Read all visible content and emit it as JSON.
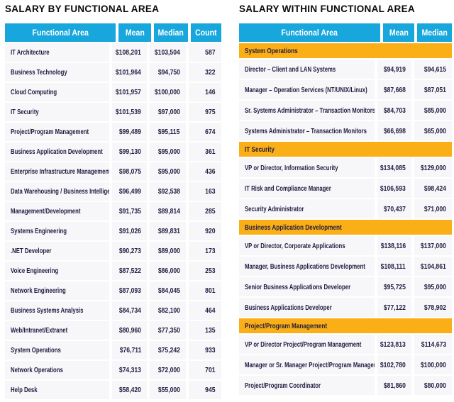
{
  "colors": {
    "header_bg": "#17A7DC",
    "section_bg": "#FBAF17",
    "row_bg": "#F7F7FA",
    "row_alt_bg": "#E5E4EF",
    "text": "#211D40",
    "header_text": "#FFFFFF"
  },
  "chart_data": [
    {
      "type": "table",
      "title": "SALARY BY FUNCTIONAL AREA",
      "columns": [
        "Functional Area",
        "Mean",
        "Median",
        "Count"
      ],
      "rows": [
        [
          "IT Architecture",
          "$108,201",
          "$103,504",
          "587"
        ],
        [
          "Business Technology",
          "$101,964",
          "$94,750",
          "322"
        ],
        [
          "Cloud Computing",
          "$101,957",
          "$100,000",
          "146"
        ],
        [
          "IT Security",
          "$101,539",
          "$97,000",
          "975"
        ],
        [
          "Project/Program Management",
          "$99,489",
          "$95,115",
          "674"
        ],
        [
          "Business Application Development",
          "$99,130",
          "$95,000",
          "361"
        ],
        [
          "Enterprise Infrastructure Management",
          "$98,075",
          "$95,000",
          "436"
        ],
        [
          "Data Warehousing / Business Intelligence",
          "$96,499",
          "$92,538",
          "163"
        ],
        [
          "Management/Development",
          "$91,735",
          "$89,814",
          "285"
        ],
        [
          "Systems Engineering",
          "$91,026",
          "$89,831",
          "920"
        ],
        [
          ".NET Developer",
          "$90,273",
          "$89,000",
          "173"
        ],
        [
          "Voice Engineering",
          "$87,522",
          "$86,000",
          "253"
        ],
        [
          "Network Engineering",
          "$87,093",
          "$84,045",
          "801"
        ],
        [
          "Business Systems Analysis",
          "$84,734",
          "$82,100",
          "464"
        ],
        [
          "Web/Intranet/Extranet",
          "$80,960",
          "$77,350",
          "135"
        ],
        [
          "System Operations",
          "$76,711",
          "$75,242",
          "933"
        ],
        [
          "Network Operations",
          "$74,313",
          "$72,000",
          "701"
        ],
        [
          "Help Desk",
          "$58,420",
          "$55,000",
          "945"
        ]
      ]
    },
    {
      "type": "table",
      "title": "SALARY WITHIN FUNCTIONAL AREA",
      "columns": [
        "Functional Area",
        "Mean",
        "Median"
      ],
      "sections": [
        {
          "name": "System Operations",
          "rows": [
            [
              "Director – Client and LAN Systems",
              "$94,919",
              "$94,615"
            ],
            [
              "Manager – Operation Services (NT/UNIX/Linux)",
              "$87,668",
              "$87,051"
            ],
            [
              "Sr. Systems Administrator – Transaction Monitors",
              "$84,703",
              "$85,000"
            ],
            [
              "Systems Administrator – Transaction Monitors",
              "$66,698",
              "$65,000"
            ]
          ]
        },
        {
          "name": "IT Security",
          "rows": [
            [
              "VP or Director, Information Security",
              "$134,085",
              "$129,000"
            ],
            [
              "IT Risk and Compliance Manager",
              "$106,593",
              "$98,424"
            ],
            [
              "Security Administrator",
              "$70,437",
              "$71,000"
            ]
          ]
        },
        {
          "name": "Business Application Development",
          "rows": [
            [
              "VP or Director, Corporate Applications",
              "$138,116",
              "$137,000"
            ],
            [
              "Manager, Business Applications Development",
              "$108,111",
              "$104,861"
            ],
            [
              "Senior Business Applications Developer",
              "$95,725",
              "$95,000"
            ],
            [
              "Business Applications Developer",
              "$77,122",
              "$78,902"
            ]
          ]
        },
        {
          "name": "Project/Program Management",
          "rows": [
            [
              "VP or Director Project/Program Management",
              "$123,813",
              "$114,673"
            ],
            [
              "Manager or Sr. Manager Project/Program Management",
              "$102,780",
              "$100,000"
            ],
            [
              "Project/Program Coordinator",
              "$81,860",
              "$80,000"
            ]
          ]
        }
      ]
    }
  ]
}
